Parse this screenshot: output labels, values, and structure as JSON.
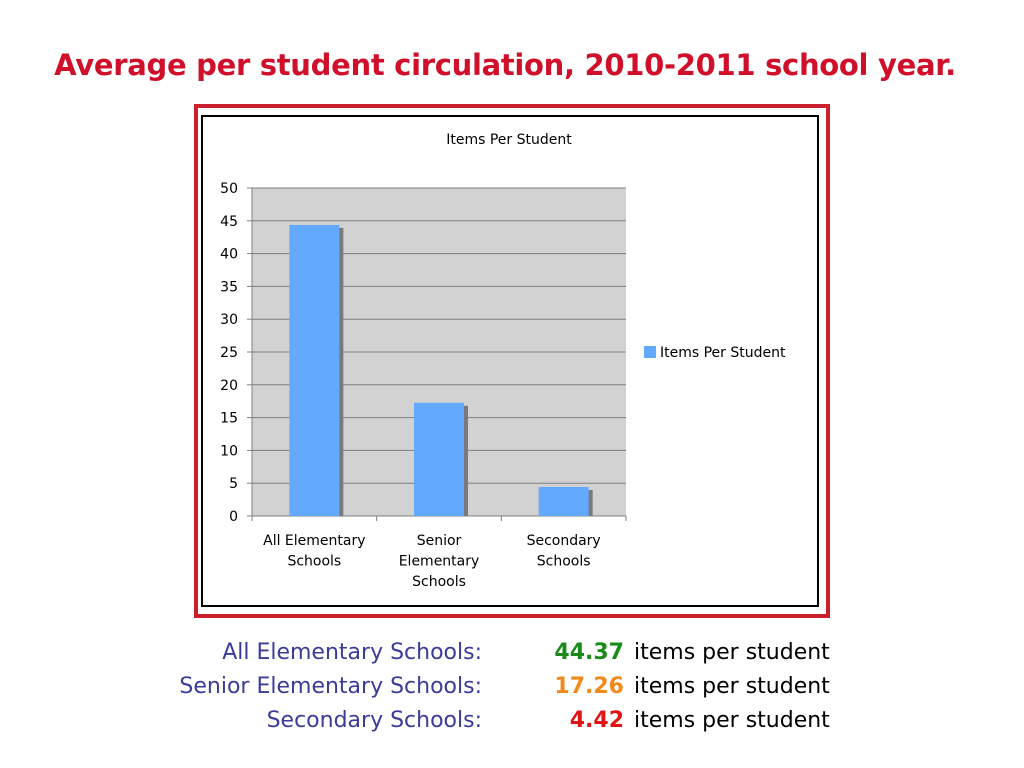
{
  "title": "Average per student circulation, 2010-2011 school year.",
  "colors": {
    "title": "#d0102a",
    "frame": "#cc1f2e",
    "plot_bg": "#d2d2d2",
    "bar": "#63aaff",
    "bar_shadow": "#7a7a7a",
    "label_blue": "#3b3b9a",
    "green": "#1a8a1a",
    "orange": "#f28a1a",
    "red": "#e01414"
  },
  "chart_data": {
    "type": "bar",
    "title": "Items Per Student",
    "categories": [
      "All Elementary Schools",
      "Senior Elementary Schools",
      "Secondary Schools"
    ],
    "category_lines": [
      [
        "All Elementary",
        "Schools"
      ],
      [
        "Senior",
        "Elementary",
        "Schools"
      ],
      [
        "Secondary",
        "Schools"
      ]
    ],
    "series": [
      {
        "name": "Items Per Student",
        "values": [
          44.37,
          17.26,
          4.42
        ]
      }
    ],
    "ylim": [
      0,
      50
    ],
    "yticks": [
      0,
      5,
      10,
      15,
      20,
      25,
      30,
      35,
      40,
      45,
      50
    ],
    "grid": true,
    "legend": "right"
  },
  "summary": [
    {
      "label": "All Elementary Schools:",
      "value": "44.37",
      "unit": "items per student",
      "color_key": "green"
    },
    {
      "label": "Senior Elementary Schools:",
      "value": "17.26",
      "unit": "items per student",
      "color_key": "orange"
    },
    {
      "label": "Secondary Schools:",
      "value": "4.42",
      "unit": "items per student",
      "color_key": "red"
    }
  ]
}
